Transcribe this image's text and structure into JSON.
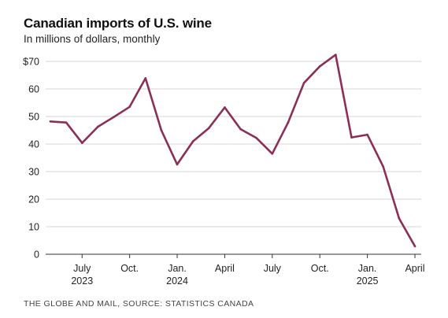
{
  "title": "Canadian imports of U.S. wine",
  "subtitle": "In millions of dollars, monthly",
  "source": "THE GLOBE AND MAIL, SOURCE: STATISTICS CANADA",
  "colors": {
    "line": "#8b2f58",
    "grid": "#d4d4d4",
    "axis": "#333333"
  },
  "chart_data": {
    "type": "line",
    "title": "Canadian imports of U.S. wine",
    "subtitle": "In millions of dollars, monthly",
    "xlabel": "",
    "ylabel": "",
    "ylim": [
      0,
      70
    ],
    "grid": true,
    "yticks": [
      {
        "value": 0,
        "label": "0"
      },
      {
        "value": 10,
        "label": "10"
      },
      {
        "value": 20,
        "label": "20"
      },
      {
        "value": 30,
        "label": "30"
      },
      {
        "value": 40,
        "label": "40"
      },
      {
        "value": 50,
        "label": "50"
      },
      {
        "value": 60,
        "label": "60"
      },
      {
        "value": 70,
        "label": "$70"
      }
    ],
    "xticks": [
      {
        "x": "2023-07",
        "label": "July",
        "year": "2023"
      },
      {
        "x": "2023-10",
        "label": "Oct.",
        "year": ""
      },
      {
        "x": "2024-01",
        "label": "Jan.",
        "year": "2024"
      },
      {
        "x": "2024-04",
        "label": "April",
        "year": ""
      },
      {
        "x": "2024-07",
        "label": "July",
        "year": ""
      },
      {
        "x": "2024-10",
        "label": "Oct.",
        "year": ""
      },
      {
        "x": "2025-01",
        "label": "Jan.",
        "year": "2025"
      },
      {
        "x": "2025-04",
        "label": "April",
        "year": ""
      }
    ],
    "series": [
      {
        "x": [
          "2023-05",
          "2023-06",
          "2023-07",
          "2023-08",
          "2023-09",
          "2023-10",
          "2023-11",
          "2023-12",
          "2024-01",
          "2024-02",
          "2024-03",
          "2024-04",
          "2024-05",
          "2024-06",
          "2024-07",
          "2024-08",
          "2024-09",
          "2024-10",
          "2024-11",
          "2024-12",
          "2025-01",
          "2025-02",
          "2025-03",
          "2025-04"
        ],
        "values": [
          48.2,
          47.8,
          40.4,
          46.3,
          49.8,
          53.5,
          63.9,
          45.0,
          32.6,
          41.0,
          45.8,
          53.3,
          45.4,
          42.2,
          36.5,
          47.8,
          62.2,
          68.2,
          72.4,
          42.4,
          43.4,
          31.8,
          13.0,
          2.9
        ]
      }
    ]
  }
}
